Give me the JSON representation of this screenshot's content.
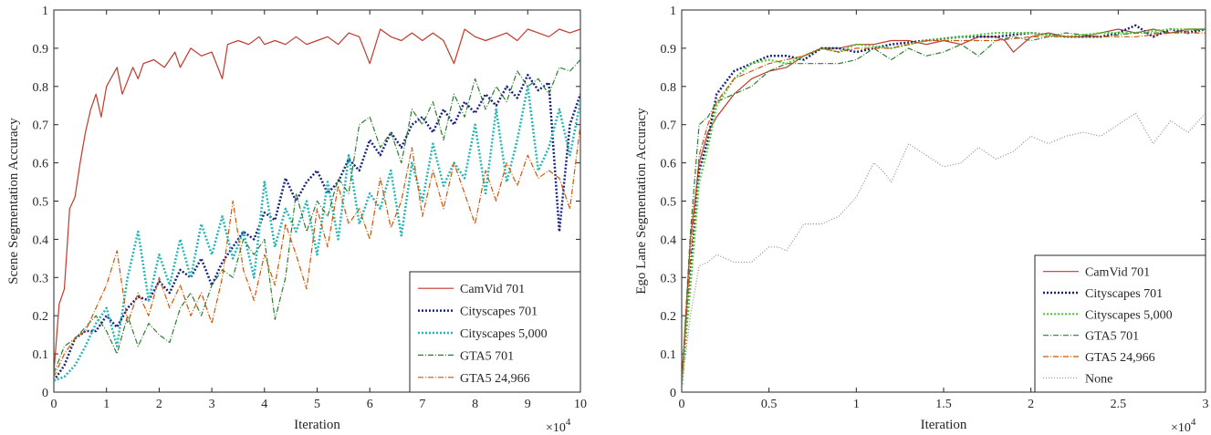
{
  "chart_data": [
    {
      "type": "line",
      "xlabel": "Iteration",
      "ylabel": "Scene Segmentation Accuracy",
      "x_multiplier_label": "×10",
      "x_multiplier_exp": "4",
      "xlim": [
        0,
        10
      ],
      "ylim": [
        0,
        1
      ],
      "xticks": [
        0,
        1,
        2,
        3,
        4,
        5,
        6,
        7,
        8,
        9,
        10
      ],
      "xtick_labels": [
        "0",
        "1",
        "2",
        "3",
        "4",
        "5",
        "6",
        "7",
        "8",
        "9",
        "10"
      ],
      "yticks": [
        0,
        0.1,
        0.2,
        0.3,
        0.4,
        0.5,
        0.6,
        0.7,
        0.8,
        0.9,
        1
      ],
      "ytick_labels": [
        "0",
        "0.1",
        "0.2",
        "0.3",
        "0.4",
        "0.5",
        "0.6",
        "0.7",
        "0.8",
        "0.9",
        "1"
      ],
      "legend_position": "bottom-right",
      "series": [
        {
          "name": "CamVid 701",
          "color": "#c0392b",
          "dash": "solid",
          "width": 1.2,
          "x": [
            0,
            0.1,
            0.2,
            0.3,
            0.4,
            0.5,
            0.6,
            0.7,
            0.8,
            0.9,
            1.0,
            1.2,
            1.3,
            1.5,
            1.6,
            1.7,
            1.9,
            2.1,
            2.3,
            2.4,
            2.6,
            2.8,
            3.0,
            3.2,
            3.3,
            3.5,
            3.7,
            3.9,
            4.0,
            4.2,
            4.4,
            4.6,
            4.8,
            5.0,
            5.2,
            5.4,
            5.6,
            5.8,
            6.0,
            6.2,
            6.4,
            6.6,
            6.8,
            7.0,
            7.2,
            7.4,
            7.6,
            7.8,
            8.0,
            8.2,
            8.4,
            8.6,
            8.8,
            9.0,
            9.2,
            9.4,
            9.6,
            9.8,
            10.0
          ],
          "y": [
            0.05,
            0.23,
            0.27,
            0.48,
            0.51,
            0.6,
            0.68,
            0.74,
            0.78,
            0.72,
            0.8,
            0.85,
            0.78,
            0.85,
            0.82,
            0.86,
            0.87,
            0.85,
            0.89,
            0.85,
            0.9,
            0.88,
            0.89,
            0.82,
            0.91,
            0.92,
            0.91,
            0.93,
            0.91,
            0.92,
            0.91,
            0.93,
            0.91,
            0.92,
            0.93,
            0.91,
            0.94,
            0.93,
            0.86,
            0.95,
            0.93,
            0.92,
            0.94,
            0.92,
            0.94,
            0.92,
            0.86,
            0.95,
            0.93,
            0.92,
            0.93,
            0.94,
            0.92,
            0.95,
            0.94,
            0.93,
            0.95,
            0.94,
            0.95
          ]
        },
        {
          "name": "Cityscapes 701",
          "color": "#1a237e",
          "dash": "2,2",
          "width": 2.5,
          "x": [
            0,
            0.2,
            0.4,
            0.6,
            0.8,
            1.0,
            1.2,
            1.4,
            1.6,
            1.8,
            2.0,
            2.2,
            2.4,
            2.6,
            2.8,
            3.0,
            3.2,
            3.4,
            3.6,
            3.8,
            4.0,
            4.2,
            4.4,
            4.6,
            4.8,
            5.0,
            5.2,
            5.4,
            5.6,
            5.8,
            6.0,
            6.2,
            6.4,
            6.6,
            6.8,
            7.0,
            7.2,
            7.4,
            7.6,
            7.8,
            8.0,
            8.2,
            8.4,
            8.6,
            8.8,
            9.0,
            9.2,
            9.4,
            9.6,
            9.8,
            10.0
          ],
          "y": [
            0.03,
            0.07,
            0.14,
            0.16,
            0.16,
            0.2,
            0.17,
            0.22,
            0.25,
            0.24,
            0.29,
            0.26,
            0.32,
            0.3,
            0.35,
            0.28,
            0.34,
            0.38,
            0.42,
            0.4,
            0.47,
            0.45,
            0.56,
            0.5,
            0.55,
            0.58,
            0.52,
            0.55,
            0.61,
            0.58,
            0.66,
            0.62,
            0.68,
            0.64,
            0.7,
            0.72,
            0.68,
            0.74,
            0.7,
            0.76,
            0.73,
            0.78,
            0.75,
            0.8,
            0.77,
            0.83,
            0.79,
            0.81,
            0.42,
            0.7,
            0.78
          ]
        },
        {
          "name": "Cityscapes 5,000",
          "color": "#26b5b5",
          "dash": "2,2",
          "width": 2.5,
          "x": [
            0,
            0.2,
            0.4,
            0.6,
            0.8,
            1.0,
            1.2,
            1.4,
            1.6,
            1.8,
            2.0,
            2.2,
            2.4,
            2.6,
            2.8,
            3.0,
            3.2,
            3.4,
            3.6,
            3.8,
            4.0,
            4.2,
            4.4,
            4.6,
            4.8,
            5.0,
            5.2,
            5.4,
            5.6,
            5.8,
            6.0,
            6.2,
            6.4,
            6.6,
            6.8,
            7.0,
            7.2,
            7.4,
            7.6,
            7.8,
            8.0,
            8.2,
            8.4,
            8.6,
            8.8,
            9.0,
            9.2,
            9.4,
            9.6,
            9.8,
            10.0
          ],
          "y": [
            0.03,
            0.04,
            0.07,
            0.12,
            0.18,
            0.22,
            0.12,
            0.3,
            0.42,
            0.24,
            0.36,
            0.28,
            0.4,
            0.3,
            0.44,
            0.36,
            0.46,
            0.35,
            0.42,
            0.3,
            0.55,
            0.38,
            0.48,
            0.42,
            0.5,
            0.36,
            0.55,
            0.4,
            0.62,
            0.44,
            0.52,
            0.48,
            0.58,
            0.41,
            0.6,
            0.5,
            0.65,
            0.54,
            0.6,
            0.56,
            0.7,
            0.52,
            0.74,
            0.55,
            0.66,
            0.8,
            0.58,
            0.64,
            0.74,
            0.62,
            0.76
          ]
        },
        {
          "name": "GTA5 701",
          "color": "#2e7d32",
          "dash": "6,2,1,2",
          "width": 1.2,
          "x": [
            0,
            0.2,
            0.4,
            0.6,
            0.8,
            1.0,
            1.2,
            1.4,
            1.6,
            1.8,
            2.0,
            2.2,
            2.4,
            2.6,
            2.8,
            3.0,
            3.2,
            3.4,
            3.6,
            3.8,
            4.0,
            4.2,
            4.4,
            4.6,
            4.8,
            5.0,
            5.2,
            5.4,
            5.6,
            5.8,
            6.0,
            6.2,
            6.4,
            6.6,
            6.8,
            7.0,
            7.2,
            7.4,
            7.6,
            7.8,
            8.0,
            8.2,
            8.4,
            8.6,
            8.8,
            9.0,
            9.2,
            9.4,
            9.6,
            9.8,
            10.0
          ],
          "y": [
            0.05,
            0.12,
            0.14,
            0.17,
            0.2,
            0.16,
            0.1,
            0.2,
            0.12,
            0.18,
            0.15,
            0.13,
            0.22,
            0.26,
            0.2,
            0.28,
            0.32,
            0.3,
            0.4,
            0.36,
            0.4,
            0.19,
            0.3,
            0.52,
            0.42,
            0.5,
            0.46,
            0.56,
            0.52,
            0.7,
            0.72,
            0.64,
            0.68,
            0.6,
            0.74,
            0.7,
            0.76,
            0.66,
            0.78,
            0.72,
            0.82,
            0.74,
            0.8,
            0.76,
            0.84,
            0.8,
            0.82,
            0.78,
            0.85,
            0.84,
            0.87
          ]
        },
        {
          "name": "GTA5 24,966",
          "color": "#d35400",
          "dash": "6,2,1,2",
          "width": 1.2,
          "x": [
            0,
            0.2,
            0.4,
            0.6,
            0.8,
            1.0,
            1.2,
            1.4,
            1.6,
            1.8,
            2.0,
            2.2,
            2.4,
            2.6,
            2.8,
            3.0,
            3.2,
            3.4,
            3.6,
            3.8,
            4.0,
            4.2,
            4.4,
            4.6,
            4.8,
            5.0,
            5.2,
            5.4,
            5.6,
            5.8,
            6.0,
            6.2,
            6.4,
            6.6,
            6.8,
            7.0,
            7.2,
            7.4,
            7.6,
            7.8,
            8.0,
            8.2,
            8.4,
            8.6,
            8.8,
            9.0,
            9.2,
            9.4,
            9.6,
            9.8,
            10.0
          ],
          "y": [
            0.04,
            0.1,
            0.14,
            0.16,
            0.22,
            0.28,
            0.37,
            0.18,
            0.26,
            0.2,
            0.3,
            0.22,
            0.28,
            0.2,
            0.26,
            0.18,
            0.3,
            0.5,
            0.32,
            0.24,
            0.36,
            0.28,
            0.44,
            0.36,
            0.27,
            0.48,
            0.38,
            0.54,
            0.44,
            0.48,
            0.4,
            0.56,
            0.43,
            0.5,
            0.64,
            0.46,
            0.58,
            0.48,
            0.6,
            0.52,
            0.44,
            0.58,
            0.5,
            0.6,
            0.54,
            0.62,
            0.56,
            0.58,
            0.56,
            0.48,
            0.7
          ]
        }
      ]
    },
    {
      "type": "line",
      "xlabel": "Iteration",
      "ylabel": "Ego Lane Segmentation Accuracy",
      "x_multiplier_label": "×10",
      "x_multiplier_exp": "4",
      "xlim": [
        0,
        3
      ],
      "ylim": [
        0,
        1
      ],
      "xticks": [
        0,
        0.5,
        1,
        1.5,
        2,
        2.5,
        3
      ],
      "xtick_labels": [
        "0",
        "0.5",
        "1",
        "1.5",
        "2",
        "2.5",
        "3"
      ],
      "yticks": [
        0,
        0.1,
        0.2,
        0.3,
        0.4,
        0.5,
        0.6,
        0.7,
        0.8,
        0.9,
        1
      ],
      "ytick_labels": [
        "0",
        "0.1",
        "0.2",
        "0.3",
        "0.4",
        "0.5",
        "0.6",
        "0.7",
        "0.8",
        "0.9",
        "1"
      ],
      "legend_position": "bottom-right",
      "series": [
        {
          "name": "CamVid 701",
          "color": "#c0392b",
          "dash": "solid",
          "width": 1.2,
          "x": [
            0,
            0.05,
            0.1,
            0.15,
            0.2,
            0.3,
            0.4,
            0.5,
            0.6,
            0.7,
            0.8,
            0.9,
            1.0,
            1.1,
            1.2,
            1.3,
            1.4,
            1.5,
            1.6,
            1.7,
            1.8,
            1.85,
            1.9,
            2.0,
            2.1,
            2.2,
            2.3,
            2.4,
            2.5,
            2.6,
            2.7,
            2.8,
            2.9,
            3.0
          ],
          "y": [
            0.02,
            0.4,
            0.6,
            0.68,
            0.72,
            0.78,
            0.82,
            0.84,
            0.85,
            0.88,
            0.9,
            0.9,
            0.91,
            0.91,
            0.92,
            0.92,
            0.91,
            0.92,
            0.91,
            0.93,
            0.93,
            0.92,
            0.89,
            0.93,
            0.94,
            0.93,
            0.93,
            0.94,
            0.95,
            0.94,
            0.95,
            0.94,
            0.95,
            0.95
          ]
        },
        {
          "name": "Cityscapes 701",
          "color": "#1a237e",
          "dash": "2,2",
          "width": 2.5,
          "x": [
            0,
            0.05,
            0.1,
            0.15,
            0.2,
            0.3,
            0.4,
            0.5,
            0.6,
            0.7,
            0.8,
            0.9,
            1.0,
            1.2,
            1.4,
            1.6,
            1.8,
            2.0,
            2.2,
            2.4,
            2.5,
            2.6,
            2.7,
            2.8,
            2.9,
            3.0
          ],
          "y": [
            0.02,
            0.3,
            0.58,
            0.66,
            0.78,
            0.84,
            0.86,
            0.88,
            0.88,
            0.87,
            0.9,
            0.9,
            0.89,
            0.91,
            0.92,
            0.93,
            0.93,
            0.94,
            0.93,
            0.93,
            0.94,
            0.96,
            0.93,
            0.95,
            0.94,
            0.95
          ]
        },
        {
          "name": "Cityscapes 5,000",
          "color": "#4cd137",
          "dash": "2,2",
          "width": 2.2,
          "x": [
            0,
            0.05,
            0.1,
            0.15,
            0.2,
            0.3,
            0.4,
            0.5,
            0.6,
            0.7,
            0.8,
            0.9,
            1.0,
            1.2,
            1.4,
            1.6,
            1.8,
            2.0,
            2.2,
            2.4,
            2.6,
            2.8,
            3.0
          ],
          "y": [
            0.02,
            0.28,
            0.55,
            0.64,
            0.75,
            0.82,
            0.86,
            0.87,
            0.86,
            0.88,
            0.9,
            0.89,
            0.91,
            0.9,
            0.92,
            0.93,
            0.94,
            0.94,
            0.93,
            0.94,
            0.94,
            0.95,
            0.95
          ]
        },
        {
          "name": "GTA5 701",
          "color": "#2e7d32",
          "dash": "6,2,1,2",
          "width": 1.2,
          "x": [
            0,
            0.05,
            0.1,
            0.15,
            0.2,
            0.3,
            0.4,
            0.5,
            0.6,
            0.7,
            0.8,
            0.9,
            1.0,
            1.1,
            1.2,
            1.3,
            1.4,
            1.5,
            1.6,
            1.7,
            1.8,
            1.9,
            2.0,
            2.2,
            2.4,
            2.6,
            2.8,
            3.0
          ],
          "y": [
            0.02,
            0.42,
            0.7,
            0.72,
            0.76,
            0.78,
            0.8,
            0.84,
            0.86,
            0.86,
            0.86,
            0.86,
            0.87,
            0.9,
            0.87,
            0.9,
            0.88,
            0.89,
            0.91,
            0.88,
            0.92,
            0.93,
            0.92,
            0.94,
            0.93,
            0.94,
            0.94,
            0.95
          ]
        },
        {
          "name": "GTA5 24,966",
          "color": "#d35400",
          "dash": "6,2,1,2",
          "width": 1.2,
          "x": [
            0,
            0.05,
            0.1,
            0.15,
            0.2,
            0.3,
            0.4,
            0.5,
            0.6,
            0.7,
            0.8,
            0.9,
            1.0,
            1.2,
            1.4,
            1.6,
            1.8,
            2.0,
            2.2,
            2.4,
            2.6,
            2.8,
            3.0
          ],
          "y": [
            0.02,
            0.35,
            0.62,
            0.7,
            0.76,
            0.82,
            0.84,
            0.86,
            0.87,
            0.88,
            0.9,
            0.89,
            0.9,
            0.9,
            0.92,
            0.92,
            0.92,
            0.93,
            0.93,
            0.93,
            0.93,
            0.94,
            0.94
          ]
        },
        {
          "name": "None",
          "color": "#8e8e8e",
          "dash": "1,2",
          "width": 1.2,
          "x": [
            0,
            0.05,
            0.1,
            0.15,
            0.2,
            0.3,
            0.4,
            0.5,
            0.55,
            0.6,
            0.7,
            0.8,
            0.9,
            1.0,
            1.1,
            1.15,
            1.2,
            1.3,
            1.4,
            1.5,
            1.6,
            1.7,
            1.8,
            1.9,
            2.0,
            2.1,
            2.2,
            2.3,
            2.4,
            2.5,
            2.6,
            2.7,
            2.8,
            2.9,
            3.0
          ],
          "y": [
            0.02,
            0.2,
            0.33,
            0.34,
            0.36,
            0.34,
            0.34,
            0.38,
            0.38,
            0.37,
            0.44,
            0.44,
            0.46,
            0.51,
            0.6,
            0.58,
            0.55,
            0.65,
            0.62,
            0.59,
            0.6,
            0.64,
            0.61,
            0.63,
            0.67,
            0.65,
            0.67,
            0.68,
            0.67,
            0.7,
            0.73,
            0.65,
            0.71,
            0.68,
            0.73
          ]
        }
      ]
    }
  ]
}
